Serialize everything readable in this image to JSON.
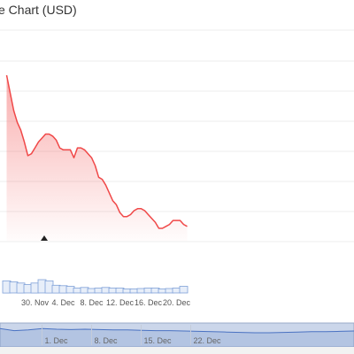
{
  "chart_data": {
    "type": "area",
    "title": "e Chart (USD)",
    "currency": "USD",
    "x_ticks": [
      "30. Nov",
      "4. Dec",
      "8. Dec",
      "12. Dec",
      "16. Dec",
      "20. Dec"
    ],
    "x_tick_days": [
      30,
      34,
      38,
      42,
      46,
      50
    ],
    "price": {
      "days": [
        26.0,
        26.5,
        27.0,
        27.5,
        28.0,
        28.5,
        29.0,
        29.5,
        30.0,
        30.5,
        31.0,
        31.5,
        32.0,
        32.5,
        33.0,
        33.5,
        34.0,
        34.5,
        35.0,
        35.5,
        36.0,
        36.5,
        37.0,
        37.5,
        38.0,
        38.5,
        39.0,
        39.5,
        40.0,
        40.5,
        41.0,
        41.5,
        42.0,
        42.5,
        43.0,
        43.5,
        44.0,
        44.5,
        45.0,
        45.5,
        46.0,
        46.5,
        47.0,
        47.5,
        48.0,
        48.5,
        49.0,
        49.5,
        50.0,
        50.5,
        51.0,
        51.5
      ],
      "values": [
        88,
        79,
        70,
        64,
        60,
        54,
        47,
        48,
        51,
        54,
        56,
        58,
        58,
        57,
        55,
        51,
        50,
        50,
        50,
        46,
        51,
        51,
        50,
        48,
        46,
        42,
        36,
        35,
        32,
        28,
        24,
        22,
        18,
        16,
        16,
        17,
        19,
        20,
        20,
        19,
        17,
        15,
        13,
        10,
        10,
        11,
        12,
        14,
        14,
        14,
        12,
        11
      ]
    },
    "volume": {
      "days": [
        26.0,
        27.0,
        28.0,
        29.0,
        30.0,
        31.0,
        32.0,
        33.0,
        34.0,
        35.0,
        36.0,
        37.0,
        38.0,
        39.0,
        40.0,
        41.0,
        42.0,
        43.0,
        44.0,
        45.0,
        46.0,
        47.0,
        48.0,
        49.0,
        50.0,
        51.0
      ],
      "values": [
        55,
        50,
        45,
        38,
        45,
        60,
        55,
        35,
        33,
        30,
        22,
        25,
        20,
        22,
        25,
        22,
        22,
        18,
        18,
        20,
        22,
        22,
        18,
        20,
        22,
        30
      ]
    },
    "navigator": {
      "x_ticks": [
        "1. Dec",
        "8. Dec",
        "15. Dec",
        "22. Dec"
      ],
      "x_tick_days": [
        31,
        38,
        45,
        52
      ],
      "values": [
        52,
        46,
        48,
        52,
        50,
        49,
        50,
        49,
        48,
        48,
        47,
        46,
        46,
        45,
        44,
        43,
        42,
        41,
        40,
        40,
        41,
        42,
        43,
        43,
        44,
        45
      ]
    }
  }
}
